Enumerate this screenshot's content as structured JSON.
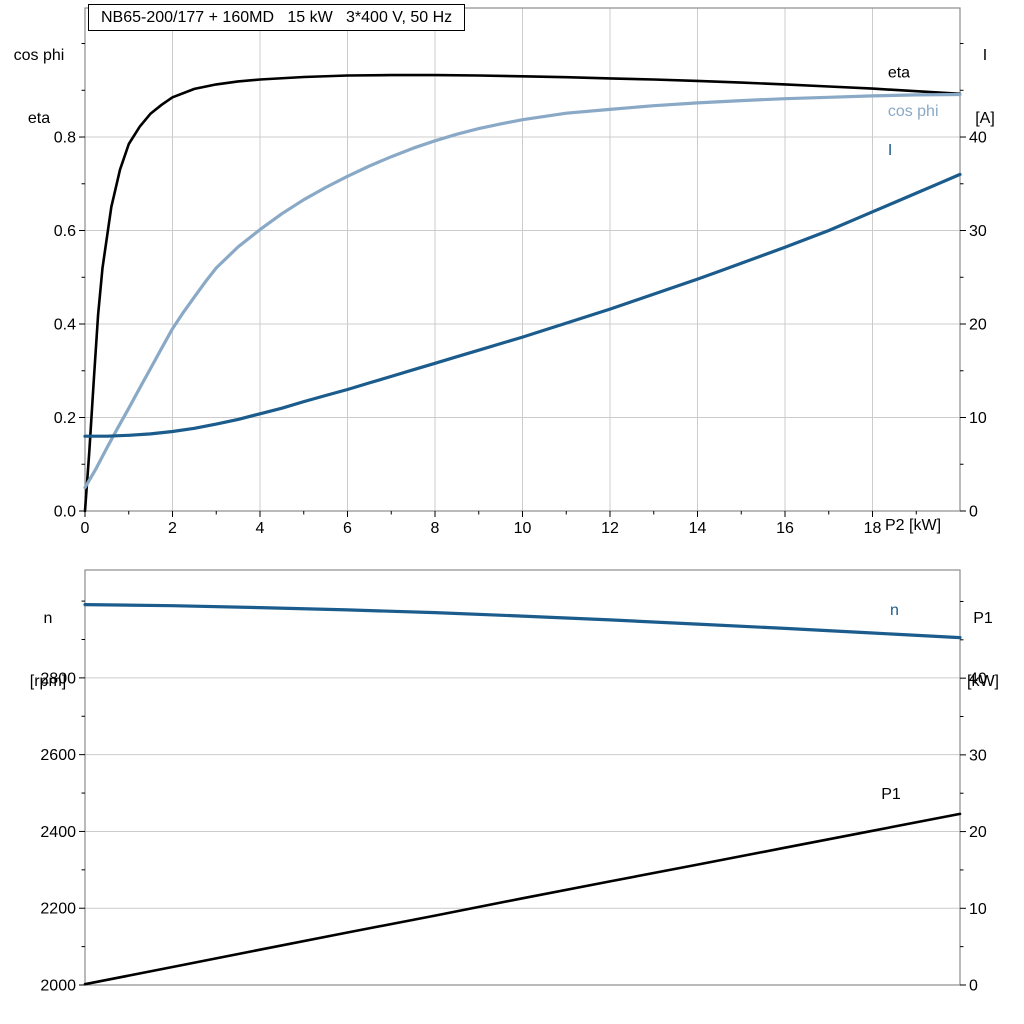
{
  "colors": {
    "grid": "#cccccc",
    "frame": "#8c8c8c",
    "axis": "#000000",
    "eta": "#000000",
    "cos_phi": "#8aa9c6",
    "current": "#1b5c8d",
    "speed": "#1b5c8d",
    "power": "#000000"
  },
  "chart_data": [
    {
      "id": "upper",
      "type": "line",
      "title": "NB65-200/177 + 160MD   15 kW   3*400 V, 50 Hz",
      "x_axis": {
        "label": "P2 [kW]",
        "min": 0,
        "max": 20,
        "grid": true,
        "majors": [
          [
            0,
            "0"
          ],
          [
            2,
            "2"
          ],
          [
            4,
            "4"
          ],
          [
            6,
            "6"
          ],
          [
            8,
            "8"
          ],
          [
            10,
            "10"
          ],
          [
            12,
            "12"
          ],
          [
            14,
            "14"
          ],
          [
            16,
            "16"
          ],
          [
            18,
            "18"
          ]
        ],
        "minors": [
          1,
          3,
          5,
          7,
          9,
          11,
          13,
          15,
          17,
          19
        ]
      },
      "left_axis": {
        "title_lines": [
          "cos phi",
          "eta"
        ],
        "min": 0,
        "max": 1.076,
        "grid": true,
        "majors": [
          [
            0,
            "0.0"
          ],
          [
            0.2,
            "0.2"
          ],
          [
            0.4,
            "0.4"
          ],
          [
            0.6,
            "0.6"
          ],
          [
            0.8,
            "0.8"
          ]
        ],
        "minors": [
          0.1,
          0.3,
          0.5,
          0.7,
          0.9,
          1.0
        ]
      },
      "right_axis": {
        "title_lines": [
          "I",
          "[A]"
        ],
        "min": 0,
        "max": 53.8,
        "grid": false,
        "majors": [
          [
            0,
            "0"
          ],
          [
            10,
            "10"
          ],
          [
            20,
            "20"
          ],
          [
            30,
            "30"
          ],
          [
            40,
            "40"
          ]
        ],
        "minors": [
          5,
          15,
          25,
          35,
          45,
          50
        ]
      },
      "series": [
        {
          "name": "eta",
          "label": "eta",
          "axis": "left",
          "color_key": "eta",
          "width": 2.6,
          "label_at": [
            18.35,
            0.938
          ],
          "points": [
            [
              0,
              0
            ],
            [
              0.1,
              0.13
            ],
            [
              0.2,
              0.28
            ],
            [
              0.3,
              0.42
            ],
            [
              0.4,
              0.52
            ],
            [
              0.6,
              0.65
            ],
            [
              0.8,
              0.73
            ],
            [
              1,
              0.785
            ],
            [
              1.25,
              0.822
            ],
            [
              1.5,
              0.85
            ],
            [
              1.75,
              0.869
            ],
            [
              2,
              0.885
            ],
            [
              2.5,
              0.903
            ],
            [
              3,
              0.9125
            ],
            [
              3.5,
              0.919
            ],
            [
              4,
              0.923
            ],
            [
              5,
              0.9285
            ],
            [
              6,
              0.9315
            ],
            [
              7,
              0.9325
            ],
            [
              8,
              0.9325
            ],
            [
              9,
              0.9315
            ],
            [
              10,
              0.93
            ],
            [
              11,
              0.928
            ],
            [
              12,
              0.9255
            ],
            [
              13,
              0.923
            ],
            [
              14,
              0.92
            ],
            [
              15,
              0.9165
            ],
            [
              16,
              0.9125
            ],
            [
              17,
              0.908
            ],
            [
              18,
              0.9035
            ],
            [
              19,
              0.898
            ],
            [
              20,
              0.8925
            ]
          ]
        },
        {
          "name": "cos phi",
          "label": "cos phi",
          "axis": "left",
          "color_key": "cos_phi",
          "width": 3.2,
          "label_at": [
            18.35,
            0.856
          ],
          "points": [
            [
              0,
              0.05
            ],
            [
              0.25,
              0.09
            ],
            [
              0.5,
              0.135
            ],
            [
              0.75,
              0.178
            ],
            [
              1,
              0.22
            ],
            [
              1.25,
              0.263
            ],
            [
              1.5,
              0.305
            ],
            [
              1.75,
              0.348
            ],
            [
              2,
              0.39
            ],
            [
              2.25,
              0.425
            ],
            [
              2.5,
              0.458
            ],
            [
              2.75,
              0.49
            ],
            [
              3,
              0.52
            ],
            [
              3.5,
              0.565
            ],
            [
              4,
              0.602
            ],
            [
              4.5,
              0.636
            ],
            [
              5,
              0.666
            ],
            [
              5.5,
              0.692
            ],
            [
              6,
              0.716
            ],
            [
              6.5,
              0.738
            ],
            [
              7,
              0.758
            ],
            [
              7.5,
              0.776
            ],
            [
              8,
              0.792
            ],
            [
              8.5,
              0.806
            ],
            [
              9,
              0.818
            ],
            [
              9.5,
              0.828
            ],
            [
              10,
              0.837
            ],
            [
              11,
              0.851
            ],
            [
              12,
              0.859
            ],
            [
              13,
              0.867
            ],
            [
              14,
              0.873
            ],
            [
              15,
              0.878
            ],
            [
              16,
              0.882
            ],
            [
              17,
              0.885
            ],
            [
              18,
              0.888
            ],
            [
              19,
              0.89
            ],
            [
              20,
              0.891
            ]
          ]
        },
        {
          "name": "I",
          "label": "I",
          "axis": "right",
          "color_key": "current",
          "width": 3.2,
          "label_at": [
            18.35,
            38.6
          ],
          "points": [
            [
              0,
              8
            ],
            [
              0.5,
              8
            ],
            [
              1,
              8.1
            ],
            [
              1.5,
              8.25
            ],
            [
              2,
              8.5
            ],
            [
              2.5,
              8.85
            ],
            [
              3,
              9.3
            ],
            [
              3.5,
              9.8
            ],
            [
              4,
              10.4
            ],
            [
              4.5,
              11
            ],
            [
              5,
              11.7
            ],
            [
              5.5,
              12.35
            ],
            [
              6,
              13
            ],
            [
              6.5,
              13.7
            ],
            [
              7,
              14.4
            ],
            [
              7.5,
              15.1
            ],
            [
              8,
              15.8
            ],
            [
              8.5,
              16.5
            ],
            [
              9,
              17.2
            ],
            [
              9.5,
              17.9
            ],
            [
              10,
              18.6
            ],
            [
              10.5,
              19.35
            ],
            [
              11,
              20.1
            ],
            [
              11.5,
              20.85
            ],
            [
              12,
              21.6
            ],
            [
              12.5,
              22.4
            ],
            [
              13,
              23.2
            ],
            [
              13.5,
              24
            ],
            [
              14,
              24.8
            ],
            [
              14.5,
              25.65
            ],
            [
              15,
              26.5
            ],
            [
              15.5,
              27.35
            ],
            [
              16,
              28.2
            ],
            [
              16.5,
              29.1
            ],
            [
              17,
              30
            ],
            [
              17.5,
              31
            ],
            [
              18,
              32
            ],
            [
              18.5,
              33
            ],
            [
              19,
              34
            ],
            [
              19.5,
              35
            ],
            [
              20,
              36
            ]
          ]
        }
      ]
    },
    {
      "id": "lower",
      "type": "line",
      "title": "",
      "x_axis": {
        "label": "",
        "min": 0,
        "max": 20,
        "grid": false,
        "majors": [],
        "minors": []
      },
      "left_axis": {
        "title_lines": [
          "n",
          "[rpm]"
        ],
        "min": 2000,
        "max": 3081,
        "grid": true,
        "majors": [
          [
            2000,
            "2000"
          ],
          [
            2200,
            "2200"
          ],
          [
            2400,
            "2400"
          ],
          [
            2600,
            "2600"
          ],
          [
            2800,
            "2800"
          ]
        ],
        "minors": [
          2100,
          2300,
          2500,
          2700,
          2900,
          3000
        ]
      },
      "right_axis": {
        "title_lines": [
          "P1",
          "[kW]"
        ],
        "min": 0,
        "max": 54.1,
        "grid": false,
        "majors": [
          [
            0,
            "0"
          ],
          [
            10,
            "10"
          ],
          [
            20,
            "20"
          ],
          [
            30,
            "30"
          ],
          [
            40,
            "40"
          ]
        ],
        "minors": [
          5,
          15,
          25,
          35,
          45,
          50
        ]
      },
      "series": [
        {
          "name": "n",
          "label": "n",
          "axis": "left",
          "color_key": "speed",
          "width": 3.2,
          "label_at": [
            18.4,
            2977
          ],
          "points": [
            [
              0,
              2991
            ],
            [
              2,
              2988
            ],
            [
              4,
              2983
            ],
            [
              6,
              2977
            ],
            [
              8,
              2970
            ],
            [
              10,
              2961
            ],
            [
              12,
              2951
            ],
            [
              14,
              2940
            ],
            [
              16,
              2929
            ],
            [
              18,
              2917
            ],
            [
              20,
              2905
            ]
          ]
        },
        {
          "name": "P1",
          "label": "P1",
          "axis": "right",
          "color_key": "power",
          "width": 2.6,
          "label_at": [
            18.2,
            24.9
          ],
          "points": [
            [
              0,
              0.1
            ],
            [
              2,
              2.35
            ],
            [
              4,
              4.6
            ],
            [
              6,
              6.85
            ],
            [
              8,
              9.05
            ],
            [
              10,
              11.3
            ],
            [
              12,
              13.5
            ],
            [
              14,
              15.7
            ],
            [
              16,
              17.9
            ],
            [
              18,
              20.1
            ],
            [
              20,
              22.3
            ]
          ]
        }
      ]
    }
  ]
}
